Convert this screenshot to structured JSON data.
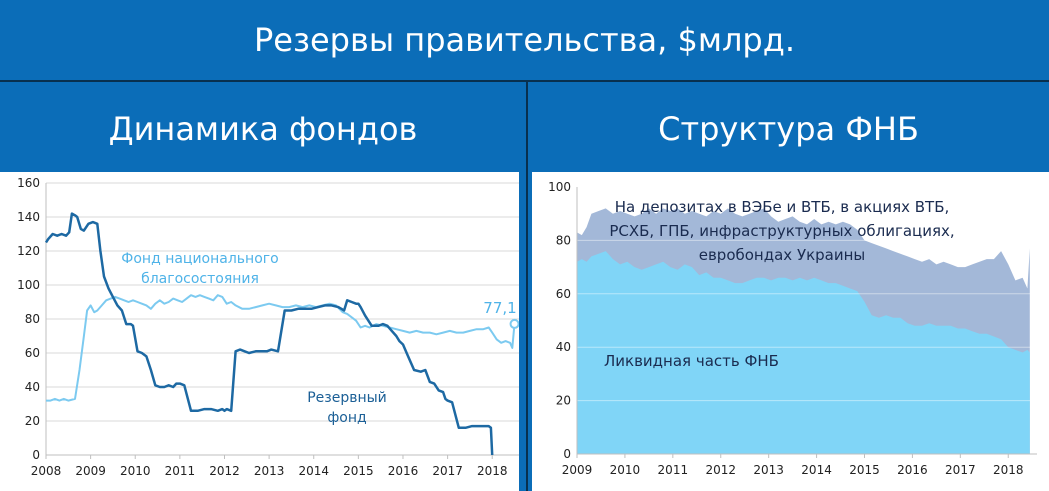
{
  "main_title": "Резервы правительства, $млрд.",
  "left_title": "Динамика фондов",
  "right_title": "Структура ФНБ",
  "colors": {
    "background": "#0b6db8",
    "fnb_line": "#7ccaf0",
    "reserve_line": "#1d69a3",
    "liquid_area": "#80d5f7",
    "other_area": "#a3b8d8"
  },
  "chart_data": [
    {
      "type": "line",
      "title": "Динамика фондов",
      "ylim": [
        0,
        160
      ],
      "y_ticks": [
        "0",
        "20",
        "40",
        "60",
        "80",
        "100",
        "120",
        "140",
        "160"
      ],
      "xlim": [
        2008,
        2018.6
      ],
      "x_ticks": [
        "2008",
        "2009",
        "2010",
        "2011",
        "2012",
        "2013",
        "2014",
        "2015",
        "2016",
        "2017",
        "2018"
      ],
      "series": [
        {
          "name": "Фонд национального благосостояния",
          "x": [
            2008.0,
            2008.1,
            2008.2,
            2008.3,
            2008.4,
            2008.5,
            2008.65,
            2008.75,
            2008.85,
            2008.92,
            2009.0,
            2009.08,
            2009.15,
            2009.25,
            2009.35,
            2009.45,
            2009.55,
            2009.65,
            2009.75,
            2009.85,
            2009.95,
            2010.05,
            2010.15,
            2010.25,
            2010.35,
            2010.45,
            2010.55,
            2010.65,
            2010.75,
            2010.85,
            2010.95,
            2011.05,
            2011.15,
            2011.25,
            2011.35,
            2011.45,
            2011.55,
            2011.65,
            2011.75,
            2011.85,
            2011.95,
            2012.05,
            2012.15,
            2012.25,
            2012.4,
            2012.55,
            2012.7,
            2012.85,
            2013.0,
            2013.15,
            2013.3,
            2013.45,
            2013.6,
            2013.75,
            2013.9,
            2014.05,
            2014.2,
            2014.35,
            2014.5,
            2014.65,
            2014.75,
            2014.85,
            2014.95,
            2015.05,
            2015.15,
            2015.25,
            2015.4,
            2015.55,
            2015.7,
            2015.85,
            2016.0,
            2016.15,
            2016.3,
            2016.45,
            2016.6,
            2016.75,
            2016.9,
            2017.05,
            2017.2,
            2017.35,
            2017.5,
            2017.65,
            2017.8,
            2017.92,
            2018.0,
            2018.1,
            2018.2,
            2018.3,
            2018.4,
            2018.45,
            2018.5
          ],
          "values": [
            32,
            32,
            33,
            32,
            33,
            32,
            33,
            50,
            70,
            85,
            88,
            84,
            85,
            88,
            91,
            92,
            93,
            92,
            91,
            90,
            91,
            90,
            89,
            88,
            86,
            89,
            91,
            89,
            90,
            92,
            91,
            90,
            92,
            94,
            93,
            94,
            93,
            92,
            91,
            94,
            93,
            89,
            90,
            88,
            86,
            86,
            87,
            88,
            89,
            88,
            87,
            87,
            88,
            87,
            88,
            87,
            88,
            89,
            88,
            84,
            83,
            81,
            79,
            75,
            76,
            75,
            77,
            76,
            75,
            74,
            73,
            72,
            73,
            72,
            72,
            71,
            72,
            73,
            72,
            72,
            73,
            74,
            74,
            75,
            72,
            68,
            66,
            67,
            66,
            63,
            77.1
          ]
        },
        {
          "name": "Резервный фонд",
          "x": [
            2008.0,
            2008.05,
            2008.15,
            2008.25,
            2008.35,
            2008.45,
            2008.52,
            2008.58,
            2008.65,
            2008.7,
            2008.78,
            2008.85,
            2008.95,
            2009.05,
            2009.15,
            2009.22,
            2009.3,
            2009.4,
            2009.5,
            2009.6,
            2009.7,
            2009.8,
            2009.9,
            2009.95,
            2010.05,
            2010.15,
            2010.25,
            2010.35,
            2010.45,
            2010.55,
            2010.65,
            2010.75,
            2010.85,
            2010.92,
            2011.0,
            2011.1,
            2011.25,
            2011.4,
            2011.55,
            2011.7,
            2011.85,
            2011.95,
            2012.0,
            2012.05,
            2012.15,
            2012.25,
            2012.35,
            2012.45,
            2012.55,
            2012.7,
            2012.85,
            2012.95,
            2013.05,
            2013.2,
            2013.35,
            2013.5,
            2013.65,
            2013.8,
            2013.95,
            2014.1,
            2014.25,
            2014.4,
            2014.55,
            2014.62,
            2014.68,
            2014.75,
            2014.85,
            2014.95,
            2015.0,
            2015.05,
            2015.15,
            2015.3,
            2015.45,
            2015.55,
            2015.65,
            2015.75,
            2015.85,
            2015.92,
            2016.0,
            2016.1,
            2016.25,
            2016.4,
            2016.5,
            2016.6,
            2016.7,
            2016.8,
            2016.9,
            2016.95,
            2017.0,
            2017.1,
            2017.25,
            2017.4,
            2017.55,
            2017.7,
            2017.85,
            2017.92,
            2017.97,
            2018.0
          ],
          "values": [
            125,
            127,
            130,
            129,
            130,
            129,
            131,
            142,
            141,
            140,
            133,
            132,
            136,
            137,
            136,
            120,
            105,
            98,
            93,
            88,
            85,
            77,
            77,
            76,
            61,
            60,
            58,
            50,
            41,
            40,
            40,
            41,
            40,
            42,
            42,
            41,
            26,
            26,
            27,
            27,
            26,
            27,
            26,
            27,
            26,
            61,
            62,
            61,
            60,
            61,
            61,
            61,
            62,
            61,
            85,
            85,
            86,
            86,
            86,
            87,
            88,
            88,
            87,
            86,
            85,
            91,
            90,
            89,
            89,
            87,
            82,
            76,
            76,
            77,
            76,
            73,
            70,
            67,
            65,
            59,
            50,
            49,
            50,
            43,
            42,
            38,
            37,
            33,
            32,
            31,
            16,
            16,
            17,
            17,
            17,
            17,
            16,
            0
          ]
        }
      ],
      "annotations": {
        "fnb_label_line1": "Фонд национального",
        "fnb_label_line2": "благосостояния",
        "reserve_label_line1": "Резервный",
        "reserve_label_line2": "фонд",
        "end_value": "77,1"
      }
    },
    {
      "type": "area",
      "title": "Структура ФНБ",
      "ylim": [
        0,
        100
      ],
      "y_ticks": [
        "0",
        "20",
        "40",
        "60",
        "80",
        "100"
      ],
      "xlim": [
        2009,
        2018.6
      ],
      "x_ticks": [
        "2009",
        "2010",
        "2011",
        "2012",
        "2013",
        "2014",
        "2015",
        "2016",
        "2017",
        "2018"
      ],
      "x": [
        2009.0,
        2009.1,
        2009.2,
        2009.3,
        2009.45,
        2009.6,
        2009.75,
        2009.9,
        2010.05,
        2010.2,
        2010.35,
        2010.5,
        2010.65,
        2010.8,
        2010.95,
        2011.1,
        2011.25,
        2011.4,
        2011.55,
        2011.7,
        2011.85,
        2012.0,
        2012.15,
        2012.3,
        2012.45,
        2012.6,
        2012.75,
        2012.9,
        2013.05,
        2013.2,
        2013.35,
        2013.5,
        2013.65,
        2013.8,
        2013.95,
        2014.1,
        2014.25,
        2014.4,
        2014.55,
        2014.7,
        2014.85,
        2015.0,
        2015.15,
        2015.3,
        2015.45,
        2015.6,
        2015.75,
        2015.9,
        2016.05,
        2016.2,
        2016.35,
        2016.5,
        2016.65,
        2016.8,
        2016.95,
        2017.1,
        2017.25,
        2017.4,
        2017.55,
        2017.7,
        2017.85,
        2018.0,
        2018.15,
        2018.3,
        2018.4,
        2018.45
      ],
      "series": [
        {
          "name": "Ликвидная часть ФНБ",
          "values": [
            72,
            73,
            72,
            74,
            75,
            76,
            73,
            71,
            72,
            70,
            69,
            70,
            71,
            72,
            70,
            69,
            71,
            70,
            67,
            68,
            66,
            66,
            65,
            64,
            64,
            65,
            66,
            66,
            65,
            66,
            66,
            65,
            66,
            65,
            66,
            65,
            64,
            64,
            63,
            62,
            61,
            57,
            52,
            51,
            52,
            51,
            51,
            49,
            48,
            48,
            49,
            48,
            48,
            48,
            47,
            47,
            46,
            45,
            45,
            44,
            43,
            40,
            39,
            38,
            39,
            38
          ]
        },
        {
          "name": "На депозитах в ВЭБе и ВТБ, в акциях ВТБ, РСХБ, ГПБ, инфраструктурных облигациях, еврободах Украины",
          "values": [
            83,
            82,
            85,
            90,
            91,
            92,
            90,
            91,
            90,
            89,
            90,
            92,
            90,
            92,
            91,
            92,
            90,
            91,
            90,
            89,
            91,
            90,
            92,
            90,
            89,
            90,
            91,
            92,
            89,
            87,
            88,
            89,
            87,
            86,
            88,
            86,
            87,
            86,
            87,
            86,
            84,
            80,
            79,
            78,
            77,
            76,
            75,
            74,
            73,
            72,
            73,
            71,
            72,
            71,
            70,
            70,
            71,
            72,
            73,
            73,
            76,
            71,
            65,
            66,
            62,
            77
          ]
        }
      ],
      "annotations": {
        "other_line1": "На депозитах в ВЭБе и ВТБ, в акциях ВТБ,",
        "other_line2": "РСХБ, ГПБ, инфраструктурных облигациях,",
        "other_line3": "евробондах Украины",
        "liquid_label": "Ликвидная часть ФНБ"
      }
    }
  ]
}
